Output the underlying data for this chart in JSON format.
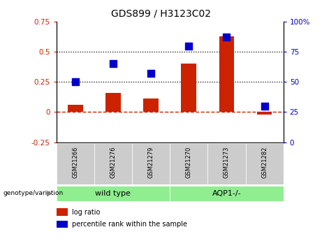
{
  "title": "GDS899 / H3123C02",
  "samples": [
    "GSM21266",
    "GSM21276",
    "GSM21279",
    "GSM21270",
    "GSM21273",
    "GSM21282"
  ],
  "log_ratio": [
    0.06,
    0.16,
    0.11,
    0.4,
    0.63,
    -0.02
  ],
  "percentile_rank": [
    50,
    65,
    57,
    80,
    87,
    30
  ],
  "group_labels": [
    "wild type",
    "AQP1-/-"
  ],
  "group_color": "#90ee90",
  "group_divider": 2.5,
  "left_ylim": [
    -0.25,
    0.75
  ],
  "right_ylim": [
    0,
    100
  ],
  "left_yticks": [
    -0.25,
    0.0,
    0.25,
    0.5,
    0.75
  ],
  "right_yticks": [
    0,
    25,
    50,
    75,
    100
  ],
  "left_yticklabels": [
    "-0.25",
    "0",
    "0.25",
    "0.5",
    "0.75"
  ],
  "right_yticklabels": [
    "0",
    "25",
    "50",
    "75",
    "100%"
  ],
  "hlines": [
    0.25,
    0.5
  ],
  "bar_color": "#cc2200",
  "dot_color": "#0000cc",
  "zero_line_color": "#cc2200",
  "label_bg_color": "#cccccc",
  "legend_log_ratio": "log ratio",
  "legend_percentile": "percentile rank within the sample",
  "genotype_label": "genotype/variation"
}
